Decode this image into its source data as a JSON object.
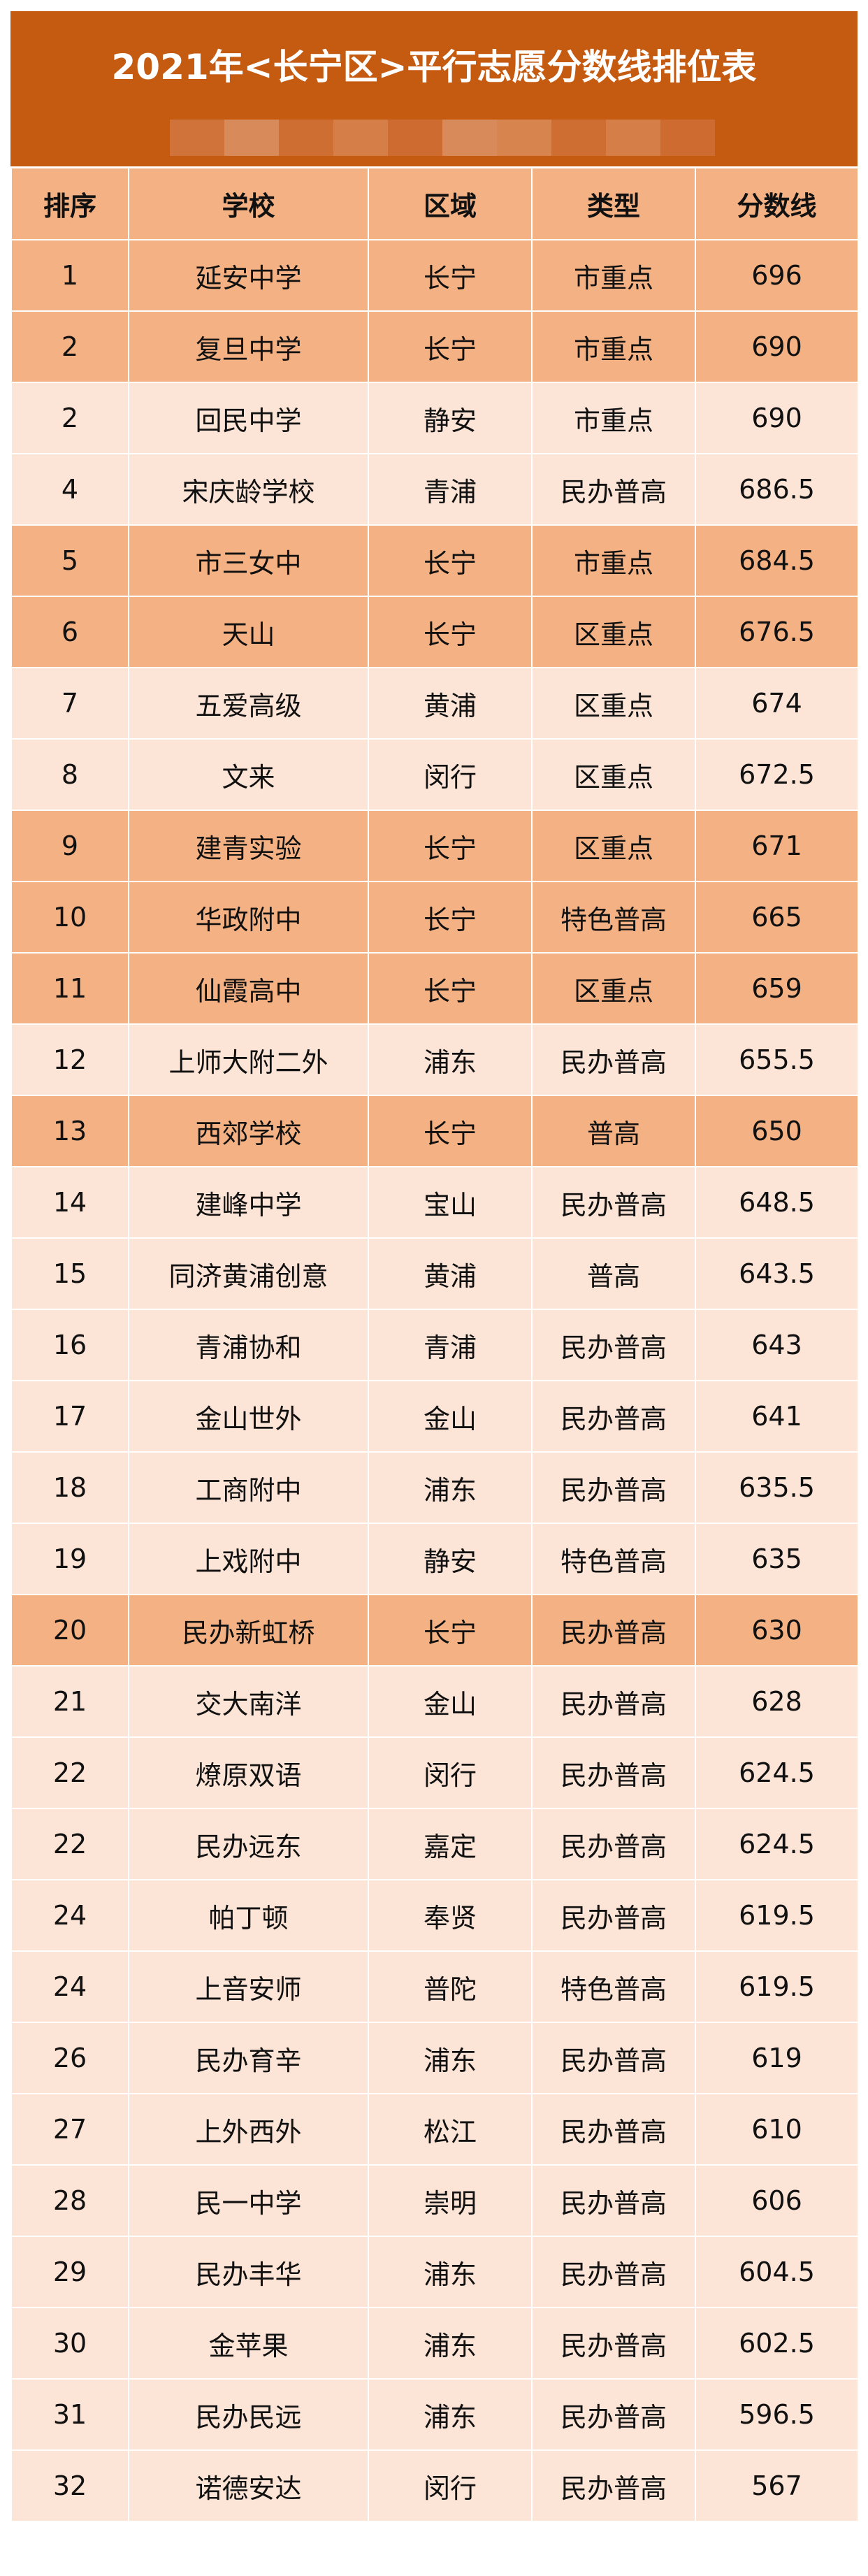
{
  "title": "2021年<长宁区>平行志愿分数线排位表",
  "colors": {
    "banner": "#c55a11",
    "highlight_row": "#f4b183",
    "normal_row": "#fce4d6"
  },
  "headers": [
    "排序",
    "学校",
    "区域",
    "类型",
    "分数线"
  ],
  "rows": [
    {
      "rank": "1",
      "school": "延安中学",
      "district": "长宁",
      "type": "市重点",
      "score": "696",
      "highlight": true
    },
    {
      "rank": "2",
      "school": "复旦中学",
      "district": "长宁",
      "type": "市重点",
      "score": "690",
      "highlight": true
    },
    {
      "rank": "2",
      "school": "回民中学",
      "district": "静安",
      "type": "市重点",
      "score": "690",
      "highlight": false
    },
    {
      "rank": "4",
      "school": "宋庆龄学校",
      "district": "青浦",
      "type": "民办普高",
      "score": "686.5",
      "highlight": false
    },
    {
      "rank": "5",
      "school": "市三女中",
      "district": "长宁",
      "type": "市重点",
      "score": "684.5",
      "highlight": true
    },
    {
      "rank": "6",
      "school": "天山",
      "district": "长宁",
      "type": "区重点",
      "score": "676.5",
      "highlight": true
    },
    {
      "rank": "7",
      "school": "五爱高级",
      "district": "黄浦",
      "type": "区重点",
      "score": "674",
      "highlight": false
    },
    {
      "rank": "8",
      "school": "文来",
      "district": "闵行",
      "type": "区重点",
      "score": "672.5",
      "highlight": false
    },
    {
      "rank": "9",
      "school": "建青实验",
      "district": "长宁",
      "type": "区重点",
      "score": "671",
      "highlight": true
    },
    {
      "rank": "10",
      "school": "华政附中",
      "district": "长宁",
      "type": "特色普高",
      "score": "665",
      "highlight": true
    },
    {
      "rank": "11",
      "school": "仙霞高中",
      "district": "长宁",
      "type": "区重点",
      "score": "659",
      "highlight": true
    },
    {
      "rank": "12",
      "school": "上师大附二外",
      "district": "浦东",
      "type": "民办普高",
      "score": "655.5",
      "highlight": false
    },
    {
      "rank": "13",
      "school": "西郊学校",
      "district": "长宁",
      "type": "普高",
      "score": "650",
      "highlight": true
    },
    {
      "rank": "14",
      "school": "建峰中学",
      "district": "宝山",
      "type": "民办普高",
      "score": "648.5",
      "highlight": false
    },
    {
      "rank": "15",
      "school": "同济黄浦创意",
      "district": "黄浦",
      "type": "普高",
      "score": "643.5",
      "highlight": false
    },
    {
      "rank": "16",
      "school": "青浦协和",
      "district": "青浦",
      "type": "民办普高",
      "score": "643",
      "highlight": false
    },
    {
      "rank": "17",
      "school": "金山世外",
      "district": "金山",
      "type": "民办普高",
      "score": "641",
      "highlight": false
    },
    {
      "rank": "18",
      "school": "工商附中",
      "district": "浦东",
      "type": "民办普高",
      "score": "635.5",
      "highlight": false
    },
    {
      "rank": "19",
      "school": "上戏附中",
      "district": "静安",
      "type": "特色普高",
      "score": "635",
      "highlight": false
    },
    {
      "rank": "20",
      "school": "民办新虹桥",
      "district": "长宁",
      "type": "民办普高",
      "score": "630",
      "highlight": true
    },
    {
      "rank": "21",
      "school": "交大南洋",
      "district": "金山",
      "type": "民办普高",
      "score": "628",
      "highlight": false
    },
    {
      "rank": "22",
      "school": "燎原双语",
      "district": "闵行",
      "type": "民办普高",
      "score": "624.5",
      "highlight": false
    },
    {
      "rank": "22",
      "school": "民办远东",
      "district": "嘉定",
      "type": "民办普高",
      "score": "624.5",
      "highlight": false
    },
    {
      "rank": "24",
      "school": "帕丁顿",
      "district": "奉贤",
      "type": "民办普高",
      "score": "619.5",
      "highlight": false
    },
    {
      "rank": "24",
      "school": "上音安师",
      "district": "普陀",
      "type": "特色普高",
      "score": "619.5",
      "highlight": false
    },
    {
      "rank": "26",
      "school": "民办育辛",
      "district": "浦东",
      "type": "民办普高",
      "score": "619",
      "highlight": false
    },
    {
      "rank": "27",
      "school": "上外西外",
      "district": "松江",
      "type": "民办普高",
      "score": "610",
      "highlight": false
    },
    {
      "rank": "28",
      "school": "民一中学",
      "district": "崇明",
      "type": "民办普高",
      "score": "606",
      "highlight": false
    },
    {
      "rank": "29",
      "school": "民办丰华",
      "district": "浦东",
      "type": "民办普高",
      "score": "604.5",
      "highlight": false
    },
    {
      "rank": "30",
      "school": "金苹果",
      "district": "浦东",
      "type": "民办普高",
      "score": "602.5",
      "highlight": false
    },
    {
      "rank": "31",
      "school": "民办民远",
      "district": "浦东",
      "type": "民办普高",
      "score": "596.5",
      "highlight": false
    },
    {
      "rank": "32",
      "school": "诺德安达",
      "district": "闵行",
      "type": "民办普高",
      "score": "567",
      "highlight": false
    }
  ]
}
